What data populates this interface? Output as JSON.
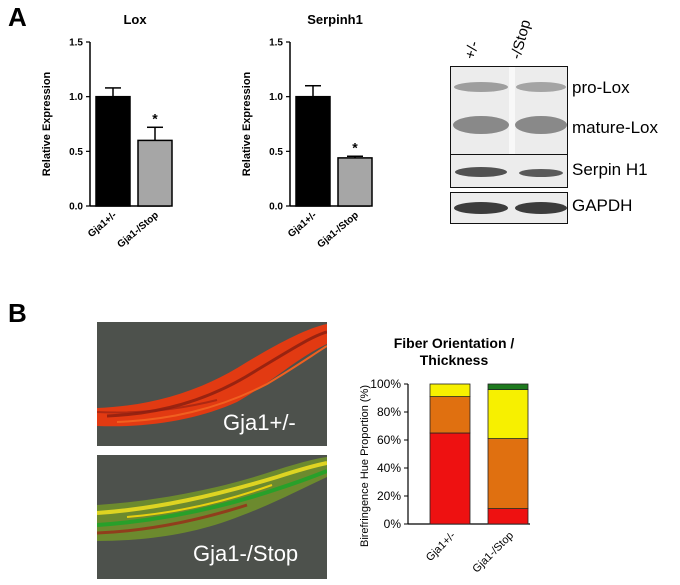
{
  "panels": {
    "a_label": "A",
    "b_label": "B"
  },
  "colors": {
    "bar_black": "#000000",
    "bar_gray": "#a6a6a6",
    "red": "#ee1111",
    "orange": "#e07010",
    "yellow": "#f7f000",
    "green": "#1e7a1e"
  },
  "blot": {
    "columns": [
      "+/-",
      "-/Stop"
    ],
    "bands": [
      "pro-Lox",
      "mature-Lox",
      "Serpin H1",
      "GAPDH"
    ]
  },
  "micrographs": [
    {
      "label": "Gja1+/-"
    },
    {
      "label": "Gja1-/Stop"
    }
  ],
  "chart_data": [
    {
      "type": "bar",
      "title": "Lox",
      "ylabel": "Relative Expression",
      "xlabel": "",
      "categories": [
        "Gja1+/-",
        "Gja1-/Stop"
      ],
      "values": [
        1.0,
        0.6
      ],
      "errors": [
        0.08,
        0.12
      ],
      "significance": [
        "",
        "*"
      ],
      "bar_colors": [
        "#000000",
        "#a6a6a6"
      ],
      "ylim": [
        0,
        1.5
      ],
      "yticks": [
        "0.0",
        "0.5",
        "1.0",
        "1.5"
      ]
    },
    {
      "type": "bar",
      "title": "Serpinh1",
      "ylabel": "Relative Expression",
      "xlabel": "",
      "categories": [
        "Gja1+/-",
        "Gja1-/Stop"
      ],
      "values": [
        1.0,
        0.44
      ],
      "errors": [
        0.1,
        0.015
      ],
      "significance": [
        "",
        "*"
      ],
      "bar_colors": [
        "#000000",
        "#a6a6a6"
      ],
      "ylim": [
        0,
        1.5
      ],
      "yticks": [
        "0.0",
        "0.5",
        "1.0",
        "1.5"
      ]
    },
    {
      "type": "bar",
      "stacked": true,
      "title": "Fiber Orientation / Thickness",
      "ylabel": "Birefringence Hue Proportion (%)",
      "xlabel": "",
      "categories": [
        "Gja1+/-",
        "Gja1-/Stop"
      ],
      "series": [
        {
          "color": "#ee1111",
          "values": [
            65,
            11
          ]
        },
        {
          "color": "#e07010",
          "values": [
            26,
            50
          ]
        },
        {
          "color": "#f7f000",
          "values": [
            9,
            35
          ]
        },
        {
          "color": "#1e7a1e",
          "values": [
            0,
            4
          ]
        }
      ],
      "ylim": [
        0,
        100
      ],
      "yticks": [
        "0%",
        "20%",
        "40%",
        "60%",
        "80%",
        "100%"
      ]
    }
  ]
}
